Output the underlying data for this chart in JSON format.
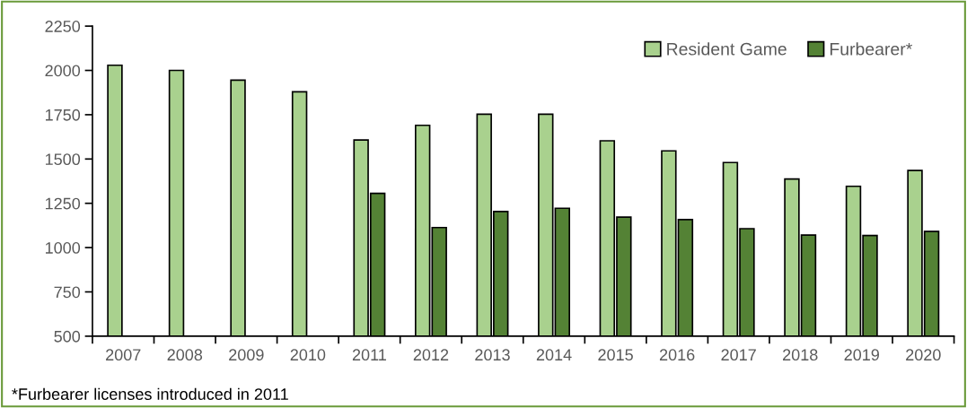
{
  "chart_data": {
    "type": "bar",
    "categories": [
      "2007",
      "2008",
      "2009",
      "2010",
      "2011",
      "2012",
      "2013",
      "2014",
      "2015",
      "2016",
      "2017",
      "2018",
      "2019",
      "2020"
    ],
    "series": [
      {
        "name": "Resident Game",
        "color": "#a9d18e",
        "values": [
          2029,
          2000,
          1945,
          1879,
          1607,
          1690,
          1753,
          1753,
          1603,
          1546,
          1480,
          1387,
          1346,
          1435
        ]
      },
      {
        "name": "Furbearer*",
        "color": "#548235",
        "values": [
          500,
          500,
          500,
          500,
          1306,
          1113,
          1204,
          1222,
          1172,
          1158,
          1107,
          1071,
          1068,
          1091
        ]
      }
    ],
    "ylim": [
      500,
      2250
    ],
    "yticks": [
      500,
      750,
      1000,
      1250,
      1500,
      1750,
      2000,
      2250
    ],
    "grid": false,
    "legend": "top right",
    "annotations": [
      "*Furbearer licenses introduced in 2011"
    ]
  }
}
